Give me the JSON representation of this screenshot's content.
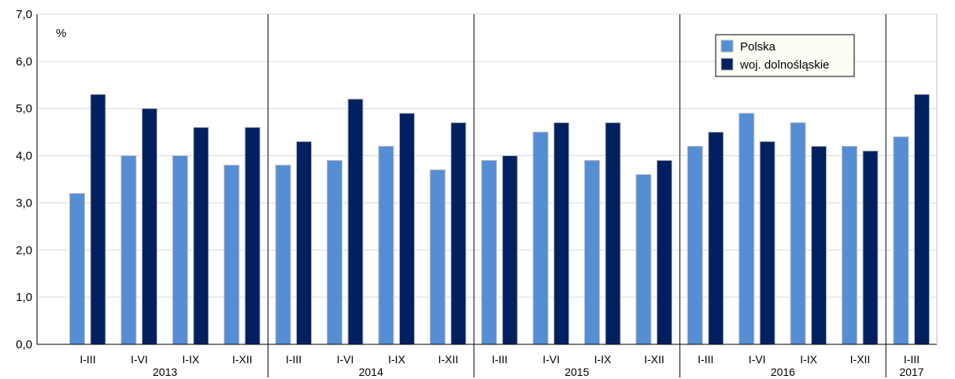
{
  "chart_data": {
    "type": "bar",
    "unit_label": "%",
    "ylim": [
      0,
      7
    ],
    "y_ticks": [
      "0,0",
      "1,0",
      "2,0",
      "3,0",
      "4,0",
      "5,0",
      "6,0",
      "7,0"
    ],
    "grid": true,
    "legend_position": "top-right",
    "colors": {
      "Polska": "#558ed5",
      "woj. dolnośląskie": "#002060"
    },
    "groups": [
      {
        "year": "2013",
        "categories": [
          "I-III",
          "I-VI",
          "I-IX",
          "I-XII"
        ]
      },
      {
        "year": "2014",
        "categories": [
          "I-III",
          "I-VI",
          "I-IX",
          "I-XII"
        ]
      },
      {
        "year": "2015",
        "categories": [
          "I-III",
          "I-VI",
          "I-IX",
          "I-XII"
        ]
      },
      {
        "year": "2016",
        "categories": [
          "I-III",
          "I-VI",
          "I-IX",
          "I-XII"
        ]
      },
      {
        "year": "2017",
        "categories": [
          "I-III"
        ]
      }
    ],
    "series": [
      {
        "name": "Polska",
        "values": [
          3.2,
          4.0,
          4.0,
          3.8,
          3.8,
          3.9,
          4.2,
          3.7,
          3.9,
          4.5,
          3.9,
          3.6,
          4.2,
          4.9,
          4.7,
          4.2,
          4.4
        ]
      },
      {
        "name": "woj. dolnośląskie",
        "values": [
          5.3,
          5.0,
          4.6,
          4.6,
          4.3,
          5.2,
          4.9,
          4.7,
          4.0,
          4.7,
          4.7,
          3.9,
          4.5,
          4.3,
          4.2,
          4.1,
          5.3
        ]
      }
    ]
  }
}
